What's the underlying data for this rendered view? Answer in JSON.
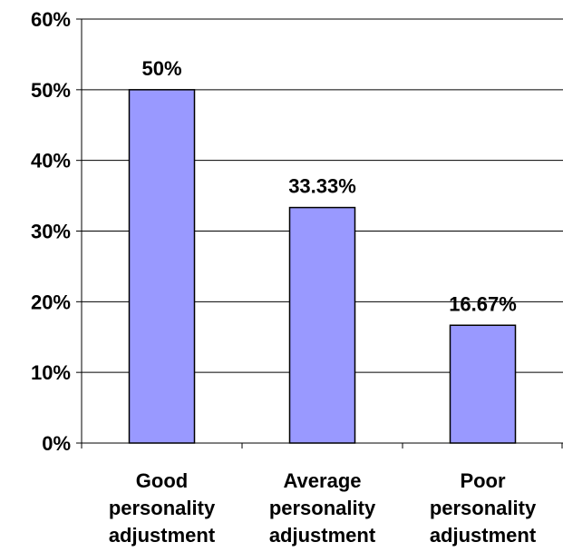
{
  "chart_data": {
    "type": "bar",
    "categories": [
      [
        "Good",
        "personality",
        "adjustment"
      ],
      [
        "Average",
        "personality",
        "adjustment"
      ],
      [
        "Poor",
        "personality",
        "adjustment"
      ]
    ],
    "values": [
      50,
      33.33,
      16.67
    ],
    "data_labels": [
      "50%",
      "33.33%",
      "16.67%"
    ],
    "ylim": [
      0,
      60
    ],
    "y_ticks": [
      0,
      10,
      20,
      30,
      40,
      50,
      60
    ],
    "y_tick_labels": [
      "0%",
      "10%",
      "20%",
      "30%",
      "40%",
      "50%",
      "60%"
    ],
    "grid": true,
    "legend": "none",
    "bar_color": "#9999ff",
    "bar_stroke": "#000000",
    "grid_color": "#000000"
  }
}
